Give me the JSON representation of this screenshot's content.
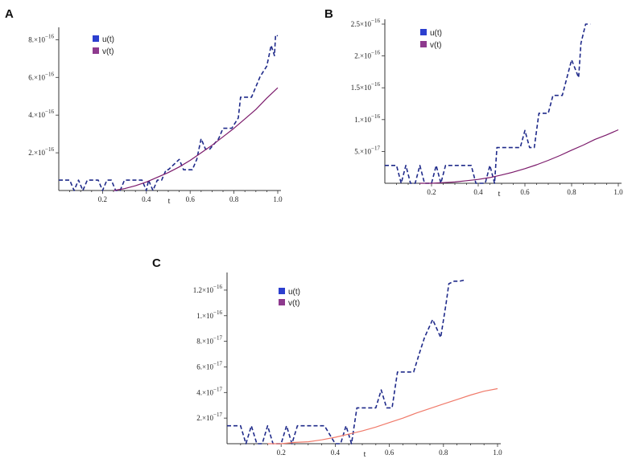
{
  "chart_data": [
    {
      "panel": "A",
      "type": "line",
      "xlabel": "t",
      "xlim": [
        0,
        1.0
      ],
      "ylim": [
        0,
        8.4e-16
      ],
      "x_ticks": [
        {
          "v": 0.2,
          "label": "0.2"
        },
        {
          "v": 0.4,
          "label": "0.4"
        },
        {
          "v": 0.6,
          "label": "0.6"
        },
        {
          "v": 0.8,
          "label": "0.8"
        },
        {
          "v": 1.0,
          "label": "1.0"
        }
      ],
      "y_ticks": [
        {
          "v": 2e-16,
          "mant": "2.",
          "exp": "−16"
        },
        {
          "v": 4e-16,
          "mant": "4.",
          "exp": "−16"
        },
        {
          "v": 6e-16,
          "mant": "6.",
          "exp": "−16"
        },
        {
          "v": 8e-16,
          "mant": "8.",
          "exp": "−16"
        }
      ],
      "series": [
        {
          "name": "u(t)",
          "style": "dashed",
          "color": "#1f2a8a",
          "legend_color": "#2c3fcf",
          "x": [
            0,
            0.05,
            0.07,
            0.09,
            0.11,
            0.13,
            0.18,
            0.2,
            0.22,
            0.24,
            0.26,
            0.28,
            0.3,
            0.38,
            0.4,
            0.41,
            0.43,
            0.45,
            0.47,
            0.49,
            0.5,
            0.55,
            0.57,
            0.61,
            0.63,
            0.65,
            0.67,
            0.69,
            0.73,
            0.75,
            0.79,
            0.82,
            0.83,
            0.88,
            0.9,
            0.92,
            0.95,
            0.97,
            0.985,
            0.99,
            1.0
          ],
          "y": [
            5.5e-17,
            5.5e-17,
            0,
            5.5e-17,
            0,
            5.5e-17,
            5.5e-17,
            0,
            5.5e-17,
            5.5e-17,
            0,
            0,
            5.5e-17,
            5.5e-17,
            0,
            5.5e-17,
            0,
            5.5e-17,
            5.5e-17,
            1.1e-16,
            1.1e-16,
            1.65e-16,
            1.1e-16,
            1.1e-16,
            1.65e-16,
            2.75e-16,
            2.2e-16,
            2.2e-16,
            2.75e-16,
            3.3e-16,
            3.3e-16,
            3.85e-16,
            4.95e-16,
            4.95e-16,
            5.5e-16,
            6.05e-16,
            6.6e-16,
            7.7e-16,
            7.15e-16,
            8.25e-16,
            8.2e-16
          ]
        },
        {
          "name": "v(t)",
          "style": "solid",
          "color": "#7b1a6b",
          "legend_color": "#8e3a8e",
          "x": [
            0.25,
            0.3,
            0.35,
            0.4,
            0.45,
            0.5,
            0.55,
            0.6,
            0.65,
            0.7,
            0.75,
            0.8,
            0.85,
            0.9,
            0.95,
            1.0
          ],
          "y": [
            0,
            1e-17,
            2.5e-17,
            4.5e-17,
            7e-17,
            9.5e-17,
            1.25e-16,
            1.6e-16,
            2e-16,
            2.4e-16,
            2.85e-16,
            3.3e-16,
            3.8e-16,
            4.3e-16,
            4.9e-16,
            5.45e-16
          ]
        }
      ]
    },
    {
      "panel": "B",
      "type": "line",
      "xlabel": "t",
      "xlim": [
        0,
        1.0
      ],
      "ylim": [
        0,
        2.5e-16
      ],
      "x_ticks": [
        {
          "v": 0.2,
          "label": "0.2"
        },
        {
          "v": 0.4,
          "label": "0.4"
        },
        {
          "v": 0.6,
          "label": "0.6"
        },
        {
          "v": 0.8,
          "label": "0.8"
        },
        {
          "v": 1.0,
          "label": "1.0"
        }
      ],
      "y_ticks": [
        {
          "v": 5e-17,
          "mant": "5.",
          "exp": "−17"
        },
        {
          "v": 1e-16,
          "mant": "1.",
          "exp": "−16"
        },
        {
          "v": 1.5e-16,
          "mant": "1.5",
          "exp": "−16"
        },
        {
          "v": 2e-16,
          "mant": "2.",
          "exp": "−16"
        },
        {
          "v": 2.5e-16,
          "mant": "2.5",
          "exp": "−16"
        }
      ],
      "series": [
        {
          "name": "u(t)",
          "style": "dashed",
          "color": "#1f2a8a",
          "legend_color": "#2c3fcf",
          "x": [
            0,
            0.05,
            0.07,
            0.09,
            0.11,
            0.13,
            0.15,
            0.17,
            0.2,
            0.22,
            0.24,
            0.26,
            0.27,
            0.3,
            0.32,
            0.37,
            0.39,
            0.43,
            0.45,
            0.47,
            0.48,
            0.5,
            0.58,
            0.6,
            0.62,
            0.64,
            0.66,
            0.7,
            0.72,
            0.76,
            0.78,
            0.8,
            0.83,
            0.84,
            0.86,
            0.88
          ],
          "y": [
            2.8e-17,
            2.8e-17,
            0,
            2.8e-17,
            0,
            0,
            2.8e-17,
            0,
            0,
            2.8e-17,
            0,
            2.8e-17,
            2.8e-17,
            2.8e-17,
            2.8e-17,
            2.8e-17,
            0,
            0,
            2.8e-17,
            0,
            5.6e-17,
            5.6e-17,
            5.6e-17,
            8.3e-17,
            5.6e-17,
            5.6e-17,
            1.1e-16,
            1.1e-16,
            1.38e-16,
            1.38e-16,
            1.66e-16,
            1.94e-16,
            1.66e-16,
            2.2e-16,
            2.5e-16,
            2.5e-16
          ]
        },
        {
          "name": "v(t)",
          "style": "solid",
          "color": "#7b1a6b",
          "legend_color": "#8e3a8e",
          "x": [
            0.15,
            0.2,
            0.25,
            0.3,
            0.35,
            0.4,
            0.45,
            0.5,
            0.55,
            0.6,
            0.65,
            0.7,
            0.75,
            0.8,
            0.85,
            0.9,
            0.95,
            1.0
          ],
          "y": [
            0,
            0,
            1e-18,
            2e-18,
            4e-18,
            6e-18,
            9e-18,
            1.3e-17,
            1.75e-17,
            2.3e-17,
            2.9e-17,
            3.6e-17,
            4.35e-17,
            5.2e-17,
            6e-17,
            6.9e-17,
            7.6e-17,
            8.4e-17
          ]
        }
      ]
    },
    {
      "panel": "C",
      "type": "line",
      "xlabel": "t",
      "xlim": [
        0,
        1.0
      ],
      "ylim": [
        0,
        1.3e-16
      ],
      "x_ticks": [
        {
          "v": 0.2,
          "label": "0.2"
        },
        {
          "v": 0.4,
          "label": "0.4"
        },
        {
          "v": 0.6,
          "label": "0.6"
        },
        {
          "v": 0.8,
          "label": "0.8"
        },
        {
          "v": 1.0,
          "label": "1.0"
        }
      ],
      "y_ticks": [
        {
          "v": 2e-17,
          "mant": "2.",
          "exp": "−17"
        },
        {
          "v": 4e-17,
          "mant": "4.",
          "exp": "−17"
        },
        {
          "v": 6e-17,
          "mant": "6.",
          "exp": "−17"
        },
        {
          "v": 8e-17,
          "mant": "8.",
          "exp": "−17"
        },
        {
          "v": 1e-16,
          "mant": "1.",
          "exp": "−16"
        },
        {
          "v": 1.2e-16,
          "mant": "1.2",
          "exp": "−16"
        }
      ],
      "series": [
        {
          "name": "u(t)",
          "style": "dashed",
          "color": "#1f2a8a",
          "legend_color": "#2c3fcf",
          "x": [
            0,
            0.05,
            0.07,
            0.09,
            0.11,
            0.13,
            0.15,
            0.17,
            0.2,
            0.22,
            0.24,
            0.26,
            0.28,
            0.34,
            0.36,
            0.4,
            0.42,
            0.44,
            0.46,
            0.48,
            0.49,
            0.55,
            0.57,
            0.59,
            0.61,
            0.63,
            0.65,
            0.69,
            0.71,
            0.73,
            0.76,
            0.79,
            0.81,
            0.82,
            0.84,
            0.86,
            0.88
          ],
          "y": [
            1.4e-17,
            1.4e-17,
            0,
            1.4e-17,
            0,
            0,
            1.4e-17,
            0,
            0,
            1.4e-17,
            0,
            1.4e-17,
            1.4e-17,
            1.4e-17,
            1.4e-17,
            0,
            0,
            1.4e-17,
            0,
            2.8e-17,
            2.8e-17,
            2.8e-17,
            4.2e-17,
            2.8e-17,
            2.8e-17,
            5.6e-17,
            5.6e-17,
            5.6e-17,
            7e-17,
            8.3e-17,
            9.7e-17,
            8.3e-17,
            1.1e-16,
            1.25e-16,
            1.27e-16,
            1.27e-16,
            1.28e-16
          ]
        },
        {
          "name": "v(t)",
          "style": "solid",
          "color": "#f07a6a",
          "legend_color": "#8e3a8e",
          "x": [
            0.15,
            0.2,
            0.25,
            0.3,
            0.35,
            0.4,
            0.45,
            0.5,
            0.55,
            0.6,
            0.65,
            0.7,
            0.75,
            0.8,
            0.85,
            0.9,
            0.95,
            1.0
          ],
          "y": [
            0,
            0,
            1e-18,
            1.5e-18,
            3e-18,
            5e-18,
            7.5e-18,
            1e-17,
            1.3e-17,
            1.65e-17,
            2e-17,
            2.4e-17,
            2.75e-17,
            3.1e-17,
            3.45e-17,
            3.8e-17,
            4.1e-17,
            4.3e-17
          ]
        }
      ]
    }
  ]
}
